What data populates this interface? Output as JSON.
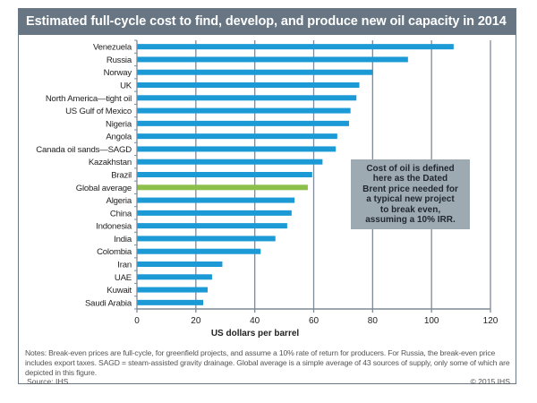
{
  "chart_data": {
    "type": "bar",
    "orientation": "horizontal",
    "title": "Estimated full-cycle cost to find, develop, and produce new oil capacity in 2014",
    "xlabel": "US dollars per barrel",
    "ylabel": "",
    "xlim": [
      0,
      120
    ],
    "xticks": [
      0,
      20,
      40,
      60,
      80,
      100,
      120
    ],
    "grid": "vertical",
    "categories": [
      "Venezuela",
      "Russia",
      "Norway",
      "UK",
      "North America—tight oil",
      "US Gulf of Mexico",
      "Nigeria",
      "Angola",
      "Canada oil sands—SAGD",
      "Kazakhstan",
      "Brazil",
      "Global average",
      "Algeria",
      "China",
      "Indonesia",
      "India",
      "Colombia",
      "Iran",
      "UAE",
      "Kuwait",
      "Saudi Arabia"
    ],
    "values": [
      107.5,
      92,
      80,
      75.5,
      74.5,
      72.5,
      72,
      68,
      67.5,
      63,
      59.5,
      58,
      53.5,
      52.5,
      51,
      47,
      42,
      29,
      25.5,
      24,
      22.5
    ],
    "highlight": "Global average",
    "colors": {
      "bar": "#1b9ad6",
      "highlight": "#8dc04a",
      "grid": "#7f8a96"
    },
    "annotation": "Cost of oil is defined\nhere as the Dated\nBrent price needed for\na typical new project\nto break even,\nassuming a 10% IRR."
  },
  "notes": "Notes: Break-even prices are full-cycle, for greenfield projects, and assume a 10% rate of return for producers. For Russia, the break-even price includes export taxes. SAGD = steam-assisted gravity drainage. Global average is a simple average of 43 sources of supply, only some of which are depicted in this figure.",
  "source": "Source: IHS",
  "copyright": "© 2015 IHS"
}
